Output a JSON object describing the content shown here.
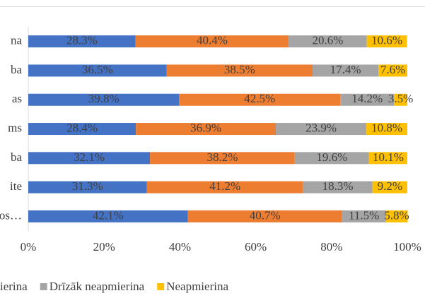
{
  "chart_data": {
    "type": "stacked-bar-horizontal",
    "categories": [
      "na",
      "ba",
      "as",
      "ms",
      "ba",
      "ite",
      "os…"
    ],
    "series": [
      {
        "color": "#4472c4",
        "values": [
          28.3,
          36.5,
          39.8,
          28.4,
          32.1,
          31.3,
          42.1
        ],
        "value_labels": [
          "28.3%",
          "36.5%",
          "39.8%",
          "28.4%",
          "32.1%",
          "31.3%",
          "42.1%"
        ]
      },
      {
        "name": "ierina",
        "color": "#ed7d31",
        "values": [
          40.4,
          38.5,
          42.5,
          36.9,
          38.2,
          41.2,
          40.7
        ],
        "value_labels": [
          "40.4%",
          "38.5%",
          "42.5%",
          "36.9%",
          "38.2%",
          "41.2%",
          "40.7%"
        ]
      },
      {
        "name": "Drīzāk neapmierina",
        "color": "#a5a5a5",
        "values": [
          20.6,
          17.4,
          14.2,
          23.9,
          19.6,
          18.3,
          11.5
        ],
        "value_labels": [
          "20.6%",
          "17.4%",
          "14.2%",
          "23.9%",
          "19.6%",
          "18.3%",
          "11.5%"
        ]
      },
      {
        "name": "Neapmierina",
        "color": "#ffc000",
        "values": [
          10.6,
          7.6,
          3.5,
          10.8,
          10.1,
          9.2,
          5.8
        ],
        "value_labels": [
          "10.6%",
          "7.6%",
          "3.5%",
          "10.8%",
          "10.1%",
          "9.2%",
          "5.8%"
        ]
      }
    ],
    "xlim": [
      0,
      100
    ],
    "xticks": [
      {
        "value": 0,
        "label": "0%"
      },
      {
        "value": 20,
        "label": "20%"
      },
      {
        "value": 40,
        "label": "40%"
      },
      {
        "value": 60,
        "label": "60%"
      },
      {
        "value": 80,
        "label": "80%"
      },
      {
        "value": 100,
        "label": "100%"
      }
    ],
    "legend": "bottom"
  }
}
